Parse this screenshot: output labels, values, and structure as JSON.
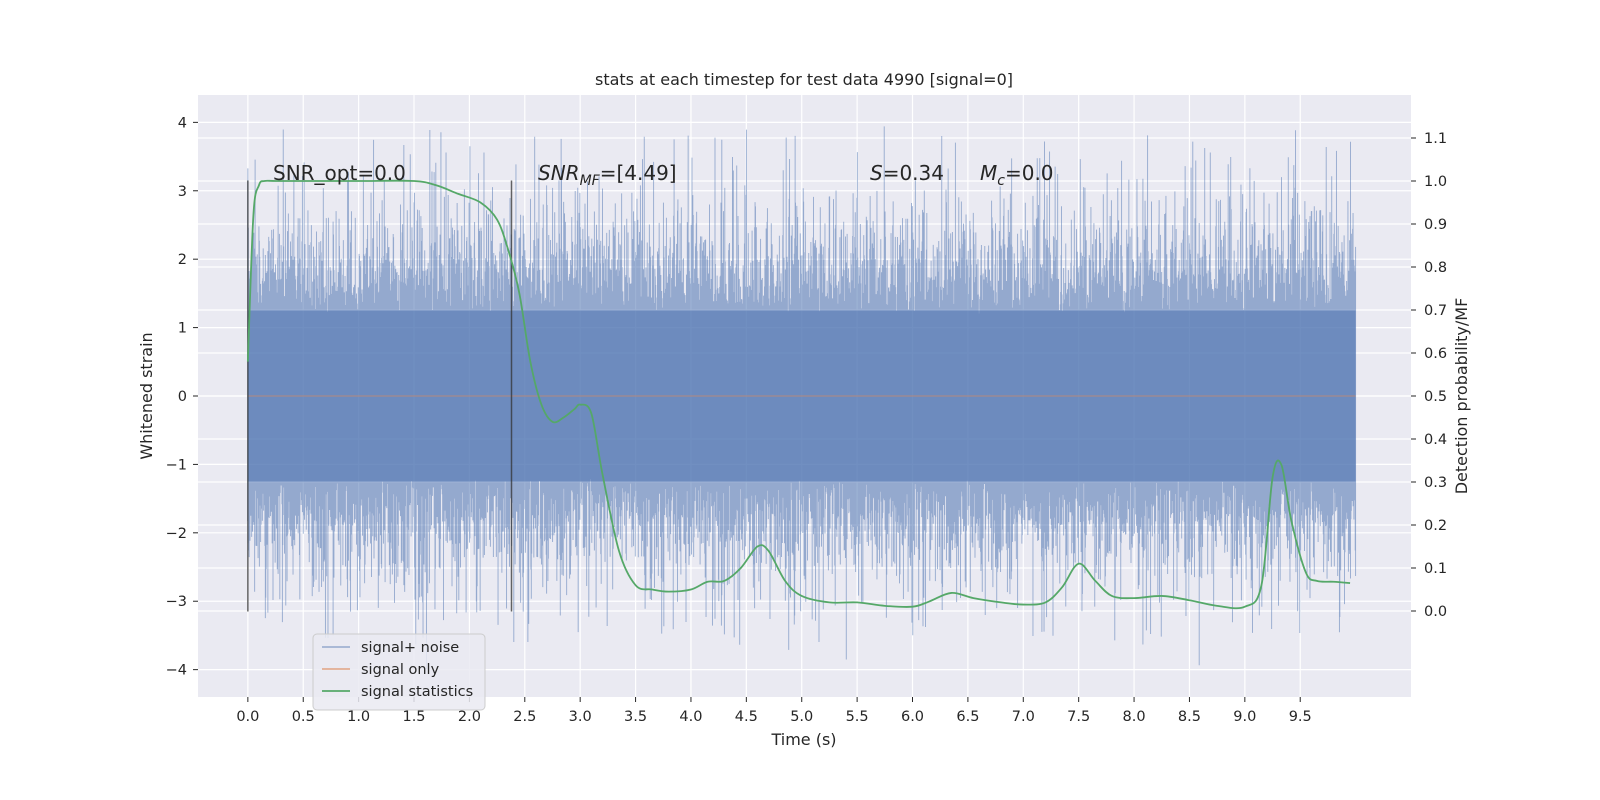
{
  "chart_data": {
    "type": "line",
    "title": "stats at each timestep for test data 4990 [signal=0]",
    "xlabel": "Time (s)",
    "ylabel_left": "Whitened strain",
    "ylabel_right": "Detection probability/MF",
    "xlim": [
      -0.45,
      10.5
    ],
    "ylim_left": [
      -4.4,
      4.4
    ],
    "ylim_right": [
      -0.2,
      1.2
    ],
    "x_ticks": [
      "0.0",
      "0.5",
      "1.0",
      "1.5",
      "2.0",
      "2.5",
      "3.0",
      "3.5",
      "4.0",
      "4.5",
      "5.0",
      "5.5",
      "6.0",
      "6.5",
      "7.0",
      "7.5",
      "8.0",
      "8.5",
      "9.0",
      "9.5"
    ],
    "x_tick_values": [
      0,
      0.5,
      1,
      1.5,
      2,
      2.5,
      3,
      3.5,
      4,
      4.5,
      5,
      5.5,
      6,
      6.5,
      7,
      7.5,
      8,
      8.5,
      9,
      9.5
    ],
    "y_ticks_left": [
      "−4",
      "−3",
      "−2",
      "−1",
      "0",
      "1",
      "2",
      "3",
      "4"
    ],
    "y_tick_values_left": [
      -4,
      -3,
      -2,
      -1,
      0,
      1,
      2,
      3,
      4
    ],
    "y_ticks_right": [
      "0.0",
      "0.1",
      "0.2",
      "0.3",
      "0.4",
      "0.5",
      "0.6",
      "0.7",
      "0.8",
      "0.9",
      "1.0",
      "1.1"
    ],
    "y_tick_values_right": [
      0,
      0.1,
      0.2,
      0.3,
      0.4,
      0.5,
      0.6,
      0.7,
      0.8,
      0.9,
      1.0,
      1.1
    ],
    "grid": true,
    "legend_position": "lower-left",
    "annotations": {
      "snr_opt": "SNR_opt=0.0",
      "snr_mf_base": "SNR",
      "snr_mf_sub": "MF",
      "snr_mf_value": "=[4.49]",
      "s_label": "S",
      "s_value": "=0.34",
      "mc_base": "M",
      "mc_sub": "c",
      "mc_value": "=0.0"
    },
    "vertical_markers": [
      0.0,
      2.38
    ],
    "vertical_marker_range_left": [
      -3.15,
      3.15
    ],
    "series": [
      {
        "name": "signal+ noise",
        "color": "#4c72b0",
        "axis": "left",
        "x_range": [
          0.0,
          10.0
        ],
        "core_amplitude": 1.25,
        "typical_peak": 2.9,
        "max": 4.0,
        "min": -3.7
      },
      {
        "name": "signal only",
        "color": "#dd8452",
        "axis": "left",
        "x": [
          0.0,
          10.0
        ],
        "y": [
          0.0,
          0.0
        ]
      },
      {
        "name": "signal statistics",
        "color": "#55a868",
        "axis": "right",
        "x": [
          0.0,
          0.05,
          0.1,
          0.15,
          0.25,
          0.5,
          1.0,
          1.5,
          1.7,
          1.9,
          2.1,
          2.25,
          2.35,
          2.45,
          2.55,
          2.65,
          2.75,
          2.85,
          2.95,
          3.0,
          3.1,
          3.2,
          3.35,
          3.5,
          3.65,
          3.8,
          4.0,
          4.15,
          4.3,
          4.45,
          4.6,
          4.7,
          4.85,
          5.0,
          5.25,
          5.5,
          5.75,
          6.0,
          6.15,
          6.35,
          6.55,
          6.8,
          7.0,
          7.2,
          7.35,
          7.5,
          7.65,
          7.8,
          8.0,
          8.25,
          8.5,
          8.75,
          9.0,
          9.15,
          9.25,
          9.33,
          9.42,
          9.55,
          9.65,
          9.8,
          9.95
        ],
        "y": [
          0.58,
          0.92,
          0.99,
          1.0,
          1.0,
          1.0,
          1.0,
          1.0,
          0.99,
          0.97,
          0.95,
          0.91,
          0.84,
          0.74,
          0.58,
          0.48,
          0.44,
          0.45,
          0.47,
          0.48,
          0.46,
          0.32,
          0.14,
          0.06,
          0.05,
          0.045,
          0.05,
          0.068,
          0.07,
          0.1,
          0.15,
          0.14,
          0.07,
          0.035,
          0.02,
          0.02,
          0.012,
          0.01,
          0.022,
          0.042,
          0.03,
          0.02,
          0.015,
          0.02,
          0.055,
          0.11,
          0.07,
          0.035,
          0.03,
          0.035,
          0.025,
          0.012,
          0.01,
          0.06,
          0.31,
          0.34,
          0.21,
          0.09,
          0.07,
          0.068,
          0.065
        ]
      }
    ]
  }
}
